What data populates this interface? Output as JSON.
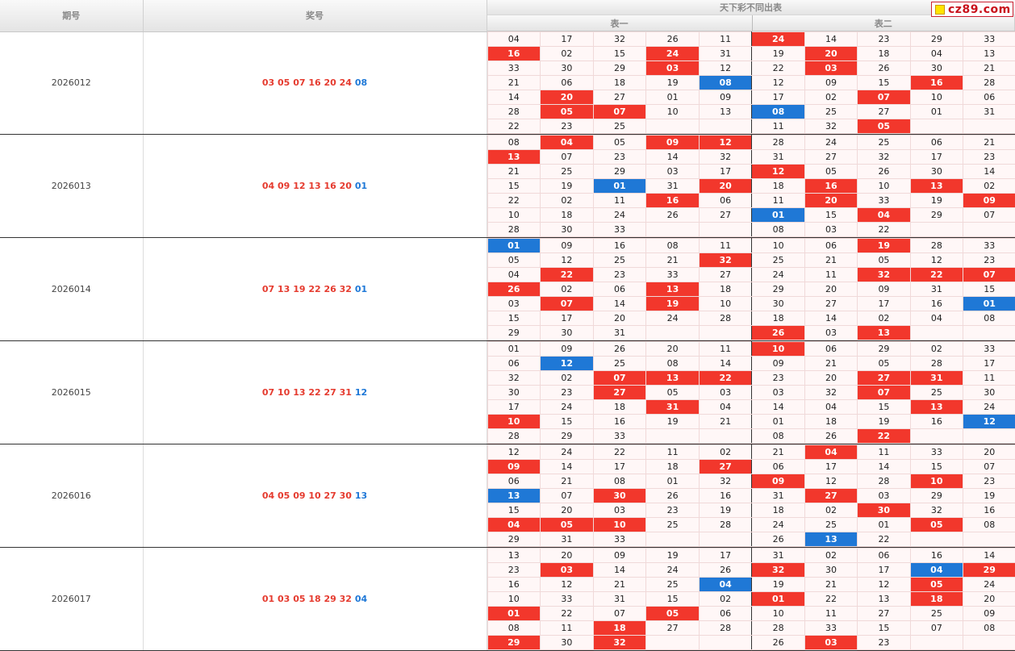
{
  "header": {
    "issue_label": "期号",
    "numbers_label": "奖号",
    "group_label": "天下彩不同出表",
    "table1_label": "表一",
    "table2_label": "表二"
  },
  "logo": {
    "text": "cz89.com",
    "square_color": "#ffe400",
    "text_color": "#c8101a"
  },
  "colors": {
    "red_mark": "#f2372c",
    "blue_mark": "#1f78d6",
    "red_number": "#e53b2f",
    "blue_number": "#1e78d7"
  },
  "draws": [
    {
      "issue": "2026012",
      "red": [
        "03",
        "05",
        "07",
        "16",
        "20",
        "24"
      ],
      "blue": "08",
      "t1": [
        [
          "04",
          "17",
          "32",
          "26",
          "11"
        ],
        [
          "16",
          "02",
          "15",
          "24",
          "31"
        ],
        [
          "33",
          "30",
          "29",
          "03",
          "12"
        ],
        [
          "21",
          "06",
          "18",
          "19",
          "08"
        ],
        [
          "14",
          "20",
          "27",
          "01",
          "09"
        ],
        [
          "28",
          "05",
          "07",
          "10",
          "13"
        ],
        [
          "22",
          "23",
          "25",
          "",
          ""
        ]
      ],
      "t2": [
        [
          "24",
          "14",
          "23",
          "29",
          "33"
        ],
        [
          "19",
          "20",
          "18",
          "04",
          "13"
        ],
        [
          "22",
          "03",
          "26",
          "30",
          "21"
        ],
        [
          "12",
          "09",
          "15",
          "16",
          "28"
        ],
        [
          "17",
          "02",
          "07",
          "10",
          "06"
        ],
        [
          "08",
          "25",
          "27",
          "01",
          "31"
        ],
        [
          "11",
          "32",
          "05",
          "",
          ""
        ]
      ]
    },
    {
      "issue": "2026013",
      "red": [
        "04",
        "09",
        "12",
        "13",
        "16",
        "20"
      ],
      "blue": "01",
      "t1": [
        [
          "08",
          "04",
          "05",
          "09",
          "12"
        ],
        [
          "13",
          "07",
          "23",
          "14",
          "32"
        ],
        [
          "21",
          "25",
          "29",
          "03",
          "17"
        ],
        [
          "15",
          "19",
          "01",
          "31",
          "20"
        ],
        [
          "22",
          "02",
          "11",
          "16",
          "06"
        ],
        [
          "10",
          "18",
          "24",
          "26",
          "27"
        ],
        [
          "28",
          "30",
          "33",
          "",
          ""
        ]
      ],
      "t2": [
        [
          "28",
          "24",
          "25",
          "06",
          "21"
        ],
        [
          "31",
          "27",
          "32",
          "17",
          "23"
        ],
        [
          "12",
          "05",
          "26",
          "30",
          "14"
        ],
        [
          "18",
          "16",
          "10",
          "13",
          "02"
        ],
        [
          "11",
          "20",
          "33",
          "19",
          "09"
        ],
        [
          "01",
          "15",
          "04",
          "29",
          "07"
        ],
        [
          "08",
          "03",
          "22",
          "",
          ""
        ]
      ]
    },
    {
      "issue": "2026014",
      "red": [
        "07",
        "13",
        "19",
        "22",
        "26",
        "32"
      ],
      "blue": "01",
      "t1": [
        [
          "01",
          "09",
          "16",
          "08",
          "11"
        ],
        [
          "05",
          "12",
          "25",
          "21",
          "32"
        ],
        [
          "04",
          "22",
          "23",
          "33",
          "27"
        ],
        [
          "26",
          "02",
          "06",
          "13",
          "18"
        ],
        [
          "03",
          "07",
          "14",
          "19",
          "10"
        ],
        [
          "15",
          "17",
          "20",
          "24",
          "28"
        ],
        [
          "29",
          "30",
          "31",
          "",
          ""
        ]
      ],
      "t2": [
        [
          "10",
          "06",
          "19",
          "28",
          "33"
        ],
        [
          "25",
          "21",
          "05",
          "12",
          "23"
        ],
        [
          "24",
          "11",
          "32",
          "22",
          "07"
        ],
        [
          "29",
          "20",
          "09",
          "31",
          "15"
        ],
        [
          "30",
          "27",
          "17",
          "16",
          "01"
        ],
        [
          "18",
          "14",
          "02",
          "04",
          "08"
        ],
        [
          "26",
          "03",
          "13",
          "",
          ""
        ]
      ]
    },
    {
      "issue": "2026015",
      "red": [
        "07",
        "10",
        "13",
        "22",
        "27",
        "31"
      ],
      "blue": "12",
      "t1": [
        [
          "01",
          "09",
          "26",
          "20",
          "11"
        ],
        [
          "06",
          "12",
          "25",
          "08",
          "14"
        ],
        [
          "32",
          "02",
          "07",
          "13",
          "22"
        ],
        [
          "30",
          "23",
          "27",
          "05",
          "03"
        ],
        [
          "17",
          "24",
          "18",
          "31",
          "04"
        ],
        [
          "10",
          "15",
          "16",
          "19",
          "21"
        ],
        [
          "28",
          "29",
          "33",
          "",
          ""
        ]
      ],
      "t2": [
        [
          "10",
          "06",
          "29",
          "02",
          "33"
        ],
        [
          "09",
          "21",
          "05",
          "28",
          "17"
        ],
        [
          "23",
          "20",
          "27",
          "31",
          "11"
        ],
        [
          "03",
          "32",
          "07",
          "25",
          "30"
        ],
        [
          "14",
          "04",
          "15",
          "13",
          "24"
        ],
        [
          "01",
          "18",
          "19",
          "16",
          "12"
        ],
        [
          "08",
          "26",
          "22",
          "",
          ""
        ]
      ]
    },
    {
      "issue": "2026016",
      "red": [
        "04",
        "05",
        "09",
        "10",
        "27",
        "30"
      ],
      "blue": "13",
      "t1": [
        [
          "12",
          "24",
          "22",
          "11",
          "02"
        ],
        [
          "09",
          "14",
          "17",
          "18",
          "27"
        ],
        [
          "06",
          "21",
          "08",
          "01",
          "32"
        ],
        [
          "13",
          "07",
          "30",
          "26",
          "16"
        ],
        [
          "15",
          "20",
          "03",
          "23",
          "19"
        ],
        [
          "04",
          "05",
          "10",
          "25",
          "28"
        ],
        [
          "29",
          "31",
          "33",
          "",
          ""
        ]
      ],
      "t2": [
        [
          "21",
          "04",
          "11",
          "33",
          "20"
        ],
        [
          "06",
          "17",
          "14",
          "15",
          "07"
        ],
        [
          "09",
          "12",
          "28",
          "10",
          "23"
        ],
        [
          "31",
          "27",
          "03",
          "29",
          "19"
        ],
        [
          "18",
          "02",
          "30",
          "32",
          "16"
        ],
        [
          "24",
          "25",
          "01",
          "05",
          "08"
        ],
        [
          "26",
          "13",
          "22",
          "",
          ""
        ]
      ]
    },
    {
      "issue": "2026017",
      "red": [
        "01",
        "03",
        "05",
        "18",
        "29",
        "32"
      ],
      "blue": "04",
      "t1": [
        [
          "13",
          "20",
          "09",
          "19",
          "17"
        ],
        [
          "23",
          "03",
          "14",
          "24",
          "26"
        ],
        [
          "16",
          "12",
          "21",
          "25",
          "04"
        ],
        [
          "10",
          "33",
          "31",
          "15",
          "02"
        ],
        [
          "01",
          "22",
          "07",
          "05",
          "06"
        ],
        [
          "08",
          "11",
          "18",
          "27",
          "28"
        ],
        [
          "29",
          "30",
          "32",
          "",
          ""
        ]
      ],
      "t2": [
        [
          "31",
          "02",
          "06",
          "16",
          "14"
        ],
        [
          "32",
          "30",
          "17",
          "04",
          "29"
        ],
        [
          "19",
          "21",
          "12",
          "05",
          "24"
        ],
        [
          "01",
          "22",
          "13",
          "18",
          "20"
        ],
        [
          "10",
          "11",
          "27",
          "25",
          "09"
        ],
        [
          "28",
          "33",
          "15",
          "07",
          "08"
        ],
        [
          "26",
          "03",
          "23",
          "",
          ""
        ]
      ]
    }
  ]
}
